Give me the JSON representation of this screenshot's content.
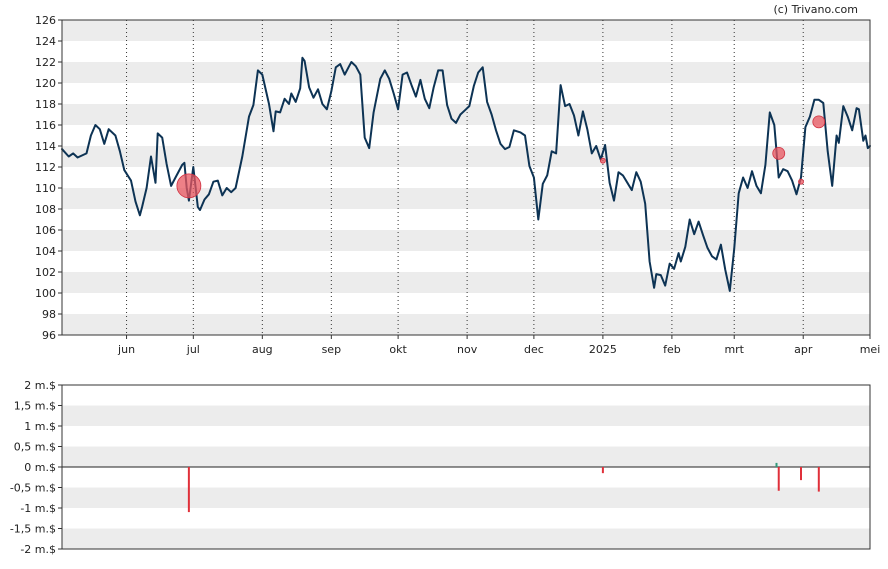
{
  "credit": "(c) Trivano.com",
  "chart_data": [
    {
      "type": "line",
      "title": "",
      "xlabel": "",
      "ylabel": "",
      "ylim": [
        96,
        126
      ],
      "yticks": [
        96,
        98,
        100,
        102,
        104,
        106,
        108,
        110,
        112,
        114,
        116,
        118,
        120,
        122,
        124,
        126
      ],
      "x_tick_labels": [
        "jun",
        "jul",
        "aug",
        "sep",
        "okt",
        "nov",
        "dec",
        "2025",
        "feb",
        "mrt",
        "apr",
        "mei"
      ],
      "x_tick_dates": [
        "2024-06-01",
        "2024-07-01",
        "2024-08-01",
        "2024-09-01",
        "2024-10-01",
        "2024-11-01",
        "2024-12-01",
        "2025-01-01",
        "2025-02-01",
        "2025-03-01",
        "2025-04-01",
        "2025-05-01"
      ],
      "xlim": [
        "2024-05-03",
        "2025-05-01"
      ],
      "grid": "alternating horizontal bands, dotted vertical lines at month starts",
      "series_color": "#0d3354",
      "series": [
        {
          "values": [
            [
              "2024-05-03",
              113.7
            ],
            [
              "2024-05-06",
              113.0
            ],
            [
              "2024-05-08",
              113.3
            ],
            [
              "2024-05-10",
              112.9
            ],
            [
              "2024-05-14",
              113.3
            ],
            [
              "2024-05-16",
              115.0
            ],
            [
              "2024-05-18",
              116.0
            ],
            [
              "2024-05-20",
              115.6
            ],
            [
              "2024-05-22",
              114.2
            ],
            [
              "2024-05-24",
              115.6
            ],
            [
              "2024-05-27",
              115.0
            ],
            [
              "2024-05-29",
              113.5
            ],
            [
              "2024-05-31",
              111.7
            ],
            [
              "2024-06-03",
              110.7
            ],
            [
              "2024-06-05",
              108.7
            ],
            [
              "2024-06-07",
              107.4
            ],
            [
              "2024-06-08",
              108.2
            ],
            [
              "2024-06-10",
              110.0
            ],
            [
              "2024-06-12",
              113.0
            ],
            [
              "2024-06-14",
              110.5
            ],
            [
              "2024-06-15",
              115.2
            ],
            [
              "2024-06-17",
              114.8
            ],
            [
              "2024-06-19",
              112.3
            ],
            [
              "2024-06-21",
              110.2
            ],
            [
              "2024-06-23",
              111.0
            ],
            [
              "2024-06-26",
              112.2
            ],
            [
              "2024-06-27",
              112.4
            ],
            [
              "2024-06-28",
              110.0
            ],
            [
              "2024-06-29",
              108.8
            ],
            [
              "2024-07-01",
              112.0
            ],
            [
              "2024-07-03",
              108.2
            ],
            [
              "2024-07-04",
              107.9
            ],
            [
              "2024-07-06",
              108.9
            ],
            [
              "2024-07-08",
              109.4
            ],
            [
              "2024-07-10",
              110.6
            ],
            [
              "2024-07-12",
              110.7
            ],
            [
              "2024-07-14",
              109.3
            ],
            [
              "2024-07-16",
              110.0
            ],
            [
              "2024-07-18",
              109.6
            ],
            [
              "2024-07-20",
              110.0
            ],
            [
              "2024-07-23",
              113.0
            ],
            [
              "2024-07-26",
              116.8
            ],
            [
              "2024-07-28",
              117.9
            ],
            [
              "2024-07-30",
              121.2
            ],
            [
              "2024-08-01",
              120.8
            ],
            [
              "2024-08-04",
              118.0
            ],
            [
              "2024-08-06",
              115.4
            ],
            [
              "2024-08-07",
              117.3
            ],
            [
              "2024-08-09",
              117.2
            ],
            [
              "2024-08-11",
              118.5
            ],
            [
              "2024-08-13",
              118.0
            ],
            [
              "2024-08-14",
              119.0
            ],
            [
              "2024-08-16",
              118.2
            ],
            [
              "2024-08-18",
              119.5
            ],
            [
              "2024-08-19",
              122.4
            ],
            [
              "2024-08-20",
              122.1
            ],
            [
              "2024-08-22",
              119.6
            ],
            [
              "2024-08-24",
              118.6
            ],
            [
              "2024-08-26",
              119.4
            ],
            [
              "2024-08-28",
              118.0
            ],
            [
              "2024-08-30",
              117.5
            ],
            [
              "2024-09-01",
              119.2
            ],
            [
              "2024-09-03",
              121.5
            ],
            [
              "2024-09-05",
              121.8
            ],
            [
              "2024-09-07",
              120.8
            ],
            [
              "2024-09-09",
              121.6
            ],
            [
              "2024-09-10",
              122.0
            ],
            [
              "2024-09-12",
              121.6
            ],
            [
              "2024-09-14",
              120.8
            ],
            [
              "2024-09-16",
              114.8
            ],
            [
              "2024-09-18",
              113.8
            ],
            [
              "2024-09-20",
              117.2
            ],
            [
              "2024-09-23",
              120.4
            ],
            [
              "2024-09-25",
              121.2
            ],
            [
              "2024-09-27",
              120.4
            ],
            [
              "2024-09-29",
              119.0
            ],
            [
              "2024-10-01",
              117.5
            ],
            [
              "2024-10-03",
              120.8
            ],
            [
              "2024-10-05",
              121.0
            ],
            [
              "2024-10-07",
              119.8
            ],
            [
              "2024-10-09",
              118.7
            ],
            [
              "2024-10-11",
              120.3
            ],
            [
              "2024-10-13",
              118.5
            ],
            [
              "2024-10-15",
              117.6
            ],
            [
              "2024-10-17",
              119.6
            ],
            [
              "2024-10-19",
              121.2
            ],
            [
              "2024-10-21",
              121.2
            ],
            [
              "2024-10-23",
              117.9
            ],
            [
              "2024-10-25",
              116.6
            ],
            [
              "2024-10-27",
              116.2
            ],
            [
              "2024-10-29",
              117.0
            ],
            [
              "2024-10-31",
              117.4
            ],
            [
              "2024-11-02",
              117.8
            ],
            [
              "2024-11-04",
              119.7
            ],
            [
              "2024-11-06",
              121.0
            ],
            [
              "2024-11-08",
              121.5
            ],
            [
              "2024-11-10",
              118.2
            ],
            [
              "2024-11-12",
              117.0
            ],
            [
              "2024-11-14",
              115.5
            ],
            [
              "2024-11-16",
              114.2
            ],
            [
              "2024-11-18",
              113.7
            ],
            [
              "2024-11-20",
              113.9
            ],
            [
              "2024-11-22",
              115.5
            ],
            [
              "2024-11-25",
              115.3
            ],
            [
              "2024-11-27",
              115.0
            ],
            [
              "2024-11-29",
              112.1
            ],
            [
              "2024-12-01",
              111.0
            ],
            [
              "2024-12-03",
              107.0
            ],
            [
              "2024-12-05",
              110.4
            ],
            [
              "2024-12-07",
              111.2
            ],
            [
              "2024-12-09",
              113.5
            ],
            [
              "2024-12-11",
              113.3
            ],
            [
              "2024-12-13",
              119.8
            ],
            [
              "2024-12-15",
              117.8
            ],
            [
              "2024-12-17",
              118.0
            ],
            [
              "2024-12-19",
              116.9
            ],
            [
              "2024-12-21",
              115.0
            ],
            [
              "2024-12-23",
              117.3
            ],
            [
              "2024-12-25",
              115.6
            ],
            [
              "2024-12-27",
              113.3
            ],
            [
              "2024-12-29",
              114.0
            ],
            [
              "2024-12-31",
              112.7
            ],
            [
              "2025-01-02",
              114.1
            ],
            [
              "2025-01-04",
              110.5
            ],
            [
              "2025-01-06",
              108.8
            ],
            [
              "2025-01-08",
              111.5
            ],
            [
              "2025-01-10",
              111.2
            ],
            [
              "2025-01-12",
              110.5
            ],
            [
              "2025-01-14",
              109.8
            ],
            [
              "2025-01-16",
              111.5
            ],
            [
              "2025-01-18",
              110.6
            ],
            [
              "2025-01-20",
              108.5
            ],
            [
              "2025-01-22",
              103.0
            ],
            [
              "2025-01-24",
              100.5
            ],
            [
              "2025-01-25",
              101.8
            ],
            [
              "2025-01-27",
              101.7
            ],
            [
              "2025-01-29",
              100.7
            ],
            [
              "2025-01-31",
              102.8
            ],
            [
              "2025-02-02",
              102.3
            ],
            [
              "2025-02-04",
              103.8
            ],
            [
              "2025-02-05",
              103.0
            ],
            [
              "2025-02-07",
              104.4
            ],
            [
              "2025-02-09",
              107.0
            ],
            [
              "2025-02-11",
              105.6
            ],
            [
              "2025-02-13",
              106.8
            ],
            [
              "2025-02-15",
              105.5
            ],
            [
              "2025-02-17",
              104.3
            ],
            [
              "2025-02-19",
              103.5
            ],
            [
              "2025-02-21",
              103.2
            ],
            [
              "2025-02-23",
              104.6
            ],
            [
              "2025-02-25",
              102.2
            ],
            [
              "2025-02-27",
              100.2
            ],
            [
              "2025-03-01",
              104.2
            ],
            [
              "2025-03-03",
              109.5
            ],
            [
              "2025-03-05",
              111.0
            ],
            [
              "2025-03-07",
              110.0
            ],
            [
              "2025-03-09",
              111.6
            ],
            [
              "2025-03-11",
              110.2
            ],
            [
              "2025-03-13",
              109.5
            ],
            [
              "2025-03-15",
              112.2
            ],
            [
              "2025-03-17",
              117.2
            ],
            [
              "2025-03-19",
              116.0
            ],
            [
              "2025-03-21",
              111.0
            ],
            [
              "2025-03-23",
              111.8
            ],
            [
              "2025-03-25",
              111.6
            ],
            [
              "2025-03-27",
              110.7
            ],
            [
              "2025-03-29",
              109.4
            ],
            [
              "2025-03-31",
              111.0
            ],
            [
              "2025-04-02",
              115.8
            ],
            [
              "2025-04-04",
              116.8
            ],
            [
              "2025-04-06",
              118.4
            ],
            [
              "2025-04-08",
              118.4
            ],
            [
              "2025-04-10",
              118.1
            ],
            [
              "2025-04-12",
              113.5
            ],
            [
              "2025-04-14",
              110.2
            ],
            [
              "2025-04-16",
              115.0
            ],
            [
              "2025-04-17",
              114.3
            ],
            [
              "2025-04-19",
              117.8
            ],
            [
              "2025-04-21",
              116.8
            ],
            [
              "2025-04-23",
              115.5
            ],
            [
              "2025-04-25",
              117.6
            ],
            [
              "2025-04-26",
              117.5
            ],
            [
              "2025-04-28",
              114.5
            ],
            [
              "2025-04-29",
              115.0
            ],
            [
              "2025-04-30",
              113.8
            ],
            [
              "2025-05-01",
              114.0
            ]
          ]
        }
      ],
      "markers": [
        {
          "x": "2024-06-29",
          "y": 110.2,
          "color": "#e8555f",
          "size": "large"
        },
        {
          "x": "2025-01-01",
          "y": 112.6,
          "color": "#e8555f",
          "size": "tiny"
        },
        {
          "x": "2025-03-21",
          "y": 113.3,
          "color": "#e8555f",
          "size": "small"
        },
        {
          "x": "2025-03-31",
          "y": 110.6,
          "color": "#e8555f",
          "size": "tiny"
        },
        {
          "x": "2025-04-08",
          "y": 116.3,
          "color": "#e8555f",
          "size": "small"
        }
      ]
    },
    {
      "type": "bar",
      "title": "",
      "ylim": [
        -2,
        2
      ],
      "ytick_labels": [
        "2 m.$",
        "1,5 m.$",
        "1 m.$",
        "0,5 m.$",
        "0 m.$",
        "-0,5 m.$",
        "-1 m.$",
        "-1,5 m.$",
        "-2 m.$"
      ],
      "ytick_values": [
        2,
        1.5,
        1,
        0.5,
        0,
        -0.5,
        -1,
        -1.5,
        -2
      ],
      "unit": "m.$",
      "grid": "alternating horizontal bands",
      "bars": [
        {
          "x": "2024-06-29",
          "value": -1.1,
          "color": "#e0303a"
        },
        {
          "x": "2025-01-01",
          "value": -0.15,
          "color": "#e0303a"
        },
        {
          "x": "2025-03-20",
          "value": 0.1,
          "color": "#2f9a7a"
        },
        {
          "x": "2025-03-21",
          "value": -0.58,
          "color": "#e0303a"
        },
        {
          "x": "2025-03-31",
          "value": -0.32,
          "color": "#e0303a"
        },
        {
          "x": "2025-04-08",
          "value": -0.6,
          "color": "#e0303a"
        }
      ]
    }
  ]
}
